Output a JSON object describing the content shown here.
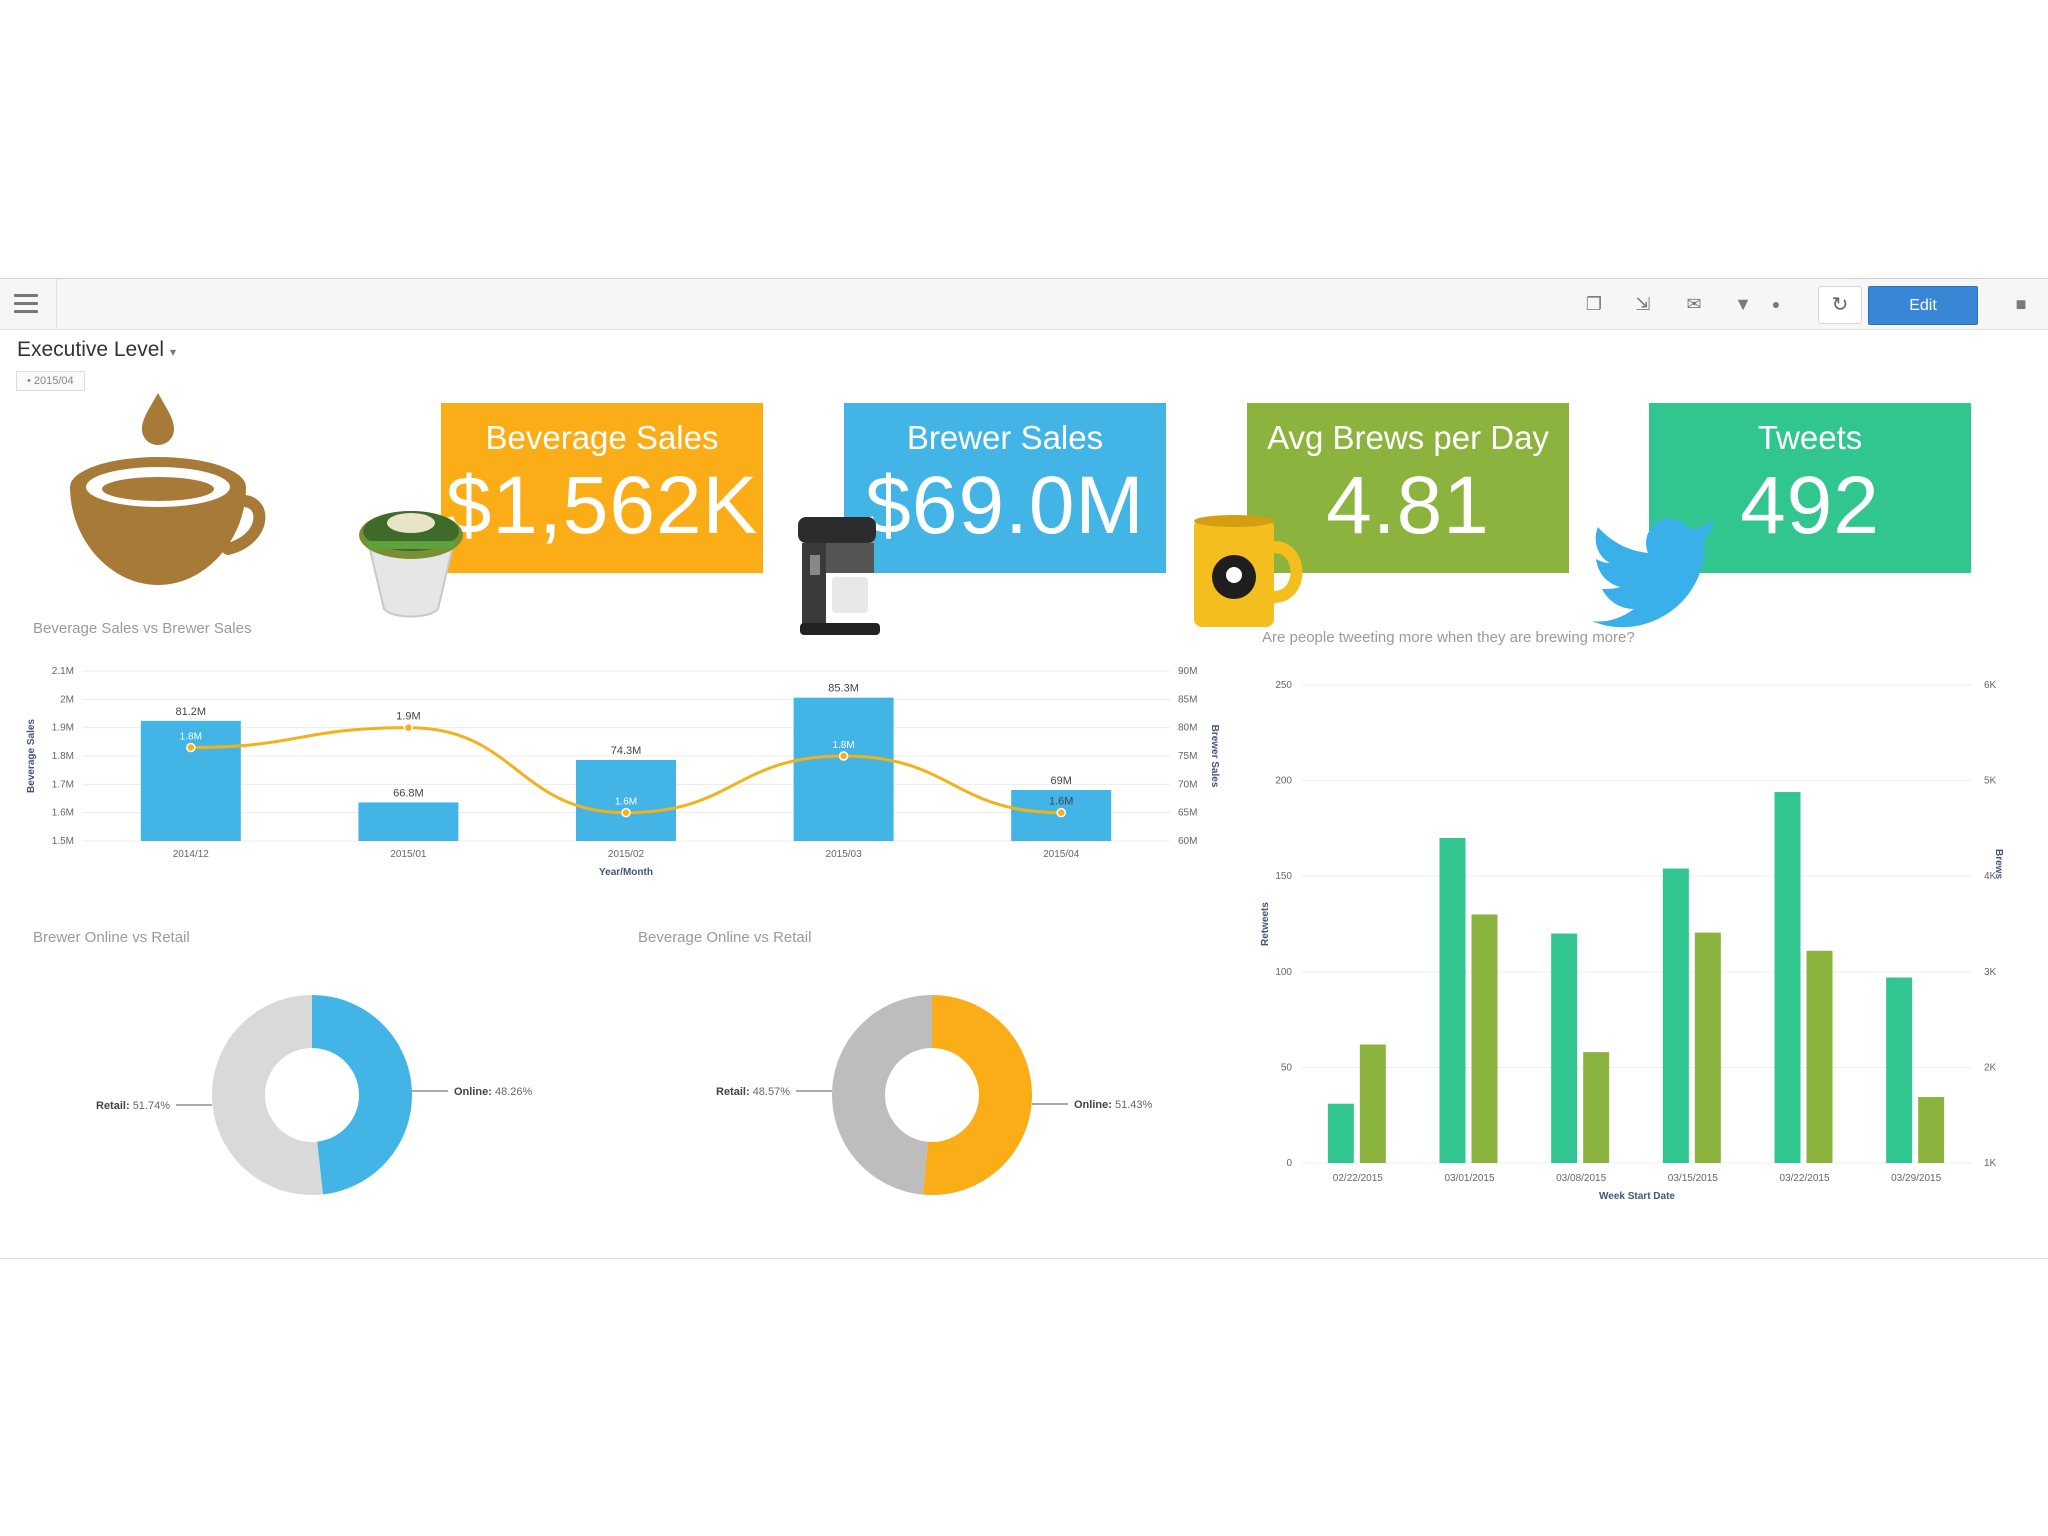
{
  "toolbar": {
    "edit_label": "Edit",
    "icons": [
      "menu-icon",
      "copy-icon",
      "export-icon",
      "comment-icon",
      "filter-icon",
      "info-icon",
      "refresh-icon",
      "camera-icon"
    ]
  },
  "page": {
    "title": "Executive Level",
    "filter_chip": "• 2015/04"
  },
  "kpis": [
    {
      "title": "Beverage Sales",
      "value": "$1,562K",
      "color": "#fbad17"
    },
    {
      "title": "Brewer Sales",
      "value": "$69.0M",
      "color": "#42b4e6"
    },
    {
      "title": "Avg Brews per Day",
      "value": "4.81",
      "color": "#8bb33e"
    },
    {
      "title": "Tweets",
      "value": "492",
      "color": "#31c58f"
    }
  ],
  "chart_data": [
    {
      "type": "bar",
      "title": "Beverage Sales vs Brewer Sales",
      "xlabel": "Year/Month",
      "ylabel": "Beverage Sales",
      "ylabel_right": "Brewer Sales",
      "categories": [
        "2014/12",
        "2015/01",
        "2015/02",
        "2015/03",
        "2015/04"
      ],
      "left_ticks": [
        "1.5M",
        "1.6M",
        "1.7M",
        "1.8M",
        "1.9M",
        "2M",
        "2.1M"
      ],
      "right_ticks": [
        "60M",
        "65M",
        "70M",
        "75M",
        "80M",
        "85M",
        "90M"
      ],
      "ylim": [
        1.5,
        2.1
      ],
      "ylim_right": [
        60,
        90
      ],
      "series": [
        {
          "name": "Brewer Sales",
          "type": "bar",
          "values": [
            81.2,
            66.8,
            74.3,
            85.3,
            69.0
          ],
          "labels": [
            "81.2M",
            "66.8M",
            "74.3M",
            "85.3M",
            "69M"
          ],
          "color": "#42b4e6"
        },
        {
          "name": "Beverage Sales",
          "type": "line",
          "values": [
            1.83,
            1.9,
            1.6,
            1.8,
            1.6
          ],
          "labels": [
            "1.8M",
            "1.9M",
            "1.6M",
            "1.8M",
            "1.6M"
          ],
          "color": "#f2b21a"
        }
      ]
    },
    {
      "type": "pie",
      "title": "Brewer Online vs Retail",
      "slices": [
        {
          "name": "Online",
          "value": 48.26,
          "label": "48.26%",
          "color": "#42b4e6"
        },
        {
          "name": "Retail",
          "value": 51.74,
          "label": "51.74%",
          "color": "#d9d9d9"
        }
      ]
    },
    {
      "type": "pie",
      "title": "Beverage Online vs Retail",
      "slices": [
        {
          "name": "Online",
          "value": 51.43,
          "label": "51.43%",
          "color": "#fbad17"
        },
        {
          "name": "Retail",
          "value": 48.57,
          "label": "48.57%",
          "color": "#bdbdbd"
        }
      ]
    },
    {
      "type": "bar",
      "title": "Are people tweeting more when they are brewing more?",
      "xlabel": "Week Start Date",
      "ylabel": "Retweets",
      "ylabel_right": "Brews",
      "categories": [
        "02/22/2015",
        "03/01/2015",
        "03/08/2015",
        "03/15/2015",
        "03/22/2015",
        "03/29/2015"
      ],
      "left_ticks": [
        "0",
        "50",
        "100",
        "150",
        "200",
        "250"
      ],
      "right_ticks": [
        "1K",
        "2K",
        "3K",
        "4K",
        "5K",
        "6K"
      ],
      "ylim": [
        0,
        250
      ],
      "ylim_right": [
        1,
        6
      ],
      "series": [
        {
          "name": "Retweets",
          "values": [
            31,
            170,
            120,
            154,
            194,
            97
          ],
          "color": "#31c58f"
        },
        {
          "name": "Brews",
          "values": [
            2.24,
            3.6,
            2.16,
            3.41,
            3.22,
            1.69
          ],
          "color": "#8bb33e"
        }
      ]
    }
  ]
}
